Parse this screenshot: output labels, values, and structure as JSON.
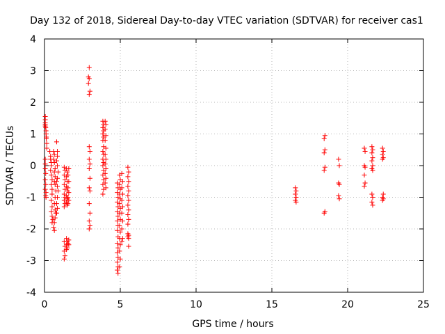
{
  "chart_data": {
    "type": "scatter",
    "title": "Day 132 of 2018, Sidereal Day-to-day VTEC variation (SDTVAR) for receiver cas1",
    "xlabel": "GPS time / hours",
    "ylabel": "SDTVAR / TECUs",
    "xlim": [
      0,
      25
    ],
    "ylim": [
      -4,
      4
    ],
    "xticks": [
      0,
      5,
      10,
      15,
      20,
      25
    ],
    "yticks": [
      -4,
      -3,
      -2,
      -1,
      0,
      1,
      2,
      3,
      4
    ],
    "grid": true,
    "marker": "plus",
    "marker_color": "#ff0000",
    "series": [
      {
        "name": "SDTVAR",
        "points": [
          [
            0.05,
            1.55
          ],
          [
            0.05,
            1.45
          ],
          [
            0.05,
            1.35
          ],
          [
            0.05,
            1.3
          ],
          [
            0.05,
            1.25
          ],
          [
            0.08,
            1.2
          ],
          [
            0.1,
            1.1
          ],
          [
            0.1,
            1.0
          ],
          [
            0.12,
            0.9
          ],
          [
            0.12,
            0.85
          ],
          [
            0.15,
            0.7
          ],
          [
            0.15,
            0.55
          ],
          [
            0.05,
            0.2
          ],
          [
            0.05,
            0.05
          ],
          [
            0.05,
            -0.1
          ],
          [
            0.08,
            -0.25
          ],
          [
            0.05,
            -0.45
          ],
          [
            0.08,
            -0.6
          ],
          [
            0.05,
            -0.75
          ],
          [
            0.1,
            -0.85
          ],
          [
            0.08,
            -0.95
          ],
          [
            0.1,
            -1.0
          ],
          [
            0.35,
            0.45
          ],
          [
            0.4,
            0.3
          ],
          [
            0.4,
            0.2
          ],
          [
            0.45,
            0.1
          ],
          [
            0.45,
            0.0
          ],
          [
            0.4,
            -0.15
          ],
          [
            0.45,
            -0.3
          ],
          [
            0.5,
            -0.45
          ],
          [
            0.45,
            -0.6
          ],
          [
            0.5,
            -0.75
          ],
          [
            0.5,
            -0.9
          ],
          [
            0.45,
            -1.1
          ],
          [
            0.5,
            -1.3
          ],
          [
            0.45,
            -1.45
          ],
          [
            0.5,
            -1.6
          ],
          [
            0.55,
            -1.7
          ],
          [
            0.5,
            -1.8
          ],
          [
            0.6,
            0.45
          ],
          [
            0.65,
            0.35
          ],
          [
            0.6,
            0.2
          ],
          [
            0.65,
            0.1
          ],
          [
            0.7,
            -0.1
          ],
          [
            0.65,
            -0.2
          ],
          [
            0.7,
            -0.35
          ],
          [
            0.65,
            -0.5
          ],
          [
            0.7,
            -0.6
          ],
          [
            0.75,
            -0.8
          ],
          [
            0.7,
            -1.0
          ],
          [
            0.65,
            -1.2
          ],
          [
            0.7,
            -1.4
          ],
          [
            0.75,
            -1.5
          ],
          [
            0.7,
            -1.65
          ],
          [
            0.65,
            -1.8
          ],
          [
            0.6,
            -1.95
          ],
          [
            0.65,
            -2.05
          ],
          [
            0.8,
            0.75
          ],
          [
            0.85,
            0.45
          ],
          [
            0.85,
            0.3
          ],
          [
            0.8,
            0.15
          ],
          [
            0.85,
            0.0
          ],
          [
            0.9,
            -0.2
          ],
          [
            0.85,
            -0.4
          ],
          [
            0.8,
            -0.5
          ],
          [
            0.85,
            -0.65
          ],
          [
            0.9,
            -0.8
          ],
          [
            0.85,
            -1.0
          ],
          [
            0.8,
            -1.2
          ],
          [
            0.85,
            -1.35
          ],
          [
            0.8,
            -1.5
          ],
          [
            1.3,
            -0.05
          ],
          [
            1.35,
            -0.15
          ],
          [
            1.3,
            -0.3
          ],
          [
            1.35,
            -0.45
          ],
          [
            1.3,
            -0.6
          ],
          [
            1.35,
            -0.75
          ],
          [
            1.3,
            -0.9
          ],
          [
            1.35,
            -1.0
          ],
          [
            1.3,
            -1.1
          ],
          [
            1.35,
            -1.2
          ],
          [
            1.3,
            -1.3
          ],
          [
            1.45,
            -0.1
          ],
          [
            1.5,
            -0.2
          ],
          [
            1.45,
            -0.35
          ],
          [
            1.5,
            -0.5
          ],
          [
            1.45,
            -0.65
          ],
          [
            1.5,
            -0.8
          ],
          [
            1.45,
            -0.95
          ],
          [
            1.5,
            -1.05
          ],
          [
            1.45,
            -1.15
          ],
          [
            1.5,
            -1.25
          ],
          [
            1.6,
            -0.1
          ],
          [
            1.55,
            -0.3
          ],
          [
            1.6,
            -0.5
          ],
          [
            1.55,
            -0.7
          ],
          [
            1.6,
            -0.85
          ],
          [
            1.55,
            -1.0
          ],
          [
            1.6,
            -1.1
          ],
          [
            1.55,
            -1.2
          ],
          [
            1.3,
            -2.4
          ],
          [
            1.35,
            -2.55
          ],
          [
            1.3,
            -2.7
          ],
          [
            1.35,
            -2.85
          ],
          [
            1.3,
            -2.95
          ],
          [
            1.45,
            -2.3
          ],
          [
            1.5,
            -2.4
          ],
          [
            1.45,
            -2.5
          ],
          [
            1.5,
            -2.6
          ],
          [
            1.45,
            -2.65
          ],
          [
            1.6,
            -2.35
          ],
          [
            1.55,
            -2.45
          ],
          [
            1.6,
            -2.5
          ],
          [
            2.95,
            3.1
          ],
          [
            2.9,
            2.8
          ],
          [
            2.95,
            2.75
          ],
          [
            2.9,
            2.6
          ],
          [
            3.0,
            2.35
          ],
          [
            2.95,
            2.25
          ],
          [
            2.95,
            0.6
          ],
          [
            3.0,
            0.45
          ],
          [
            2.95,
            0.2
          ],
          [
            3.0,
            0.05
          ],
          [
            2.95,
            -0.1
          ],
          [
            3.0,
            -0.4
          ],
          [
            2.95,
            -0.7
          ],
          [
            3.0,
            -0.8
          ],
          [
            2.95,
            -1.2
          ],
          [
            3.0,
            -1.5
          ],
          [
            2.95,
            -1.75
          ],
          [
            3.0,
            -1.9
          ],
          [
            2.95,
            -2.0
          ],
          [
            3.85,
            1.4
          ],
          [
            3.9,
            1.3
          ],
          [
            3.85,
            1.2
          ],
          [
            3.9,
            1.1
          ],
          [
            3.85,
            1.0
          ],
          [
            3.9,
            0.9
          ],
          [
            3.85,
            0.8
          ],
          [
            3.9,
            0.6
          ],
          [
            3.85,
            0.45
          ],
          [
            3.9,
            0.35
          ],
          [
            3.85,
            0.2
          ],
          [
            3.9,
            0.1
          ],
          [
            3.85,
            0.0
          ],
          [
            3.9,
            -0.15
          ],
          [
            3.85,
            -0.3
          ],
          [
            3.9,
            -0.45
          ],
          [
            3.85,
            -0.6
          ],
          [
            3.9,
            -0.75
          ],
          [
            3.85,
            -0.9
          ],
          [
            4.0,
            1.4
          ],
          [
            4.05,
            1.3
          ],
          [
            4.0,
            1.15
          ],
          [
            4.05,
            0.95
          ],
          [
            4.0,
            0.8
          ],
          [
            4.05,
            0.55
          ],
          [
            4.0,
            0.35
          ],
          [
            4.05,
            0.2
          ],
          [
            4.0,
            0.05
          ],
          [
            4.05,
            -0.1
          ],
          [
            4.0,
            -0.25
          ],
          [
            4.05,
            -0.4
          ],
          [
            4.0,
            -0.55
          ],
          [
            4.05,
            -0.7
          ],
          [
            4.8,
            -0.55
          ],
          [
            4.85,
            -0.7
          ],
          [
            4.8,
            -0.85
          ],
          [
            4.85,
            -1.0
          ],
          [
            4.8,
            -1.15
          ],
          [
            4.85,
            -1.3
          ],
          [
            4.8,
            -1.45
          ],
          [
            4.85,
            -1.6
          ],
          [
            4.8,
            -1.75
          ],
          [
            4.85,
            -1.9
          ],
          [
            4.8,
            -2.05
          ],
          [
            4.85,
            -2.25
          ],
          [
            4.8,
            -2.45
          ],
          [
            4.85,
            -2.6
          ],
          [
            4.8,
            -2.75
          ],
          [
            4.85,
            -2.9
          ],
          [
            4.8,
            -3.05
          ],
          [
            4.85,
            -3.2
          ],
          [
            4.8,
            -3.3
          ],
          [
            4.85,
            -3.4
          ],
          [
            4.95,
            -0.3
          ],
          [
            5.0,
            -0.45
          ],
          [
            4.95,
            -0.6
          ],
          [
            5.0,
            -0.75
          ],
          [
            4.95,
            -0.9
          ],
          [
            5.0,
            -1.05
          ],
          [
            4.95,
            -1.2
          ],
          [
            5.0,
            -1.35
          ],
          [
            4.95,
            -1.5
          ],
          [
            5.0,
            -1.7
          ],
          [
            4.95,
            -1.9
          ],
          [
            5.0,
            -2.1
          ],
          [
            4.95,
            -2.3
          ],
          [
            5.0,
            -2.5
          ],
          [
            4.95,
            -2.7
          ],
          [
            5.0,
            -2.95
          ],
          [
            4.95,
            -3.2
          ],
          [
            5.1,
            -0.25
          ],
          [
            5.15,
            -0.5
          ],
          [
            5.1,
            -0.7
          ],
          [
            5.15,
            -0.9
          ],
          [
            5.1,
            -1.1
          ],
          [
            5.15,
            -1.3
          ],
          [
            5.1,
            -1.5
          ],
          [
            5.15,
            -1.75
          ],
          [
            5.1,
            -2.0
          ],
          [
            5.15,
            -2.3
          ],
          [
            5.1,
            -2.4
          ],
          [
            5.5,
            -0.05
          ],
          [
            5.55,
            -0.2
          ],
          [
            5.5,
            -0.35
          ],
          [
            5.55,
            -0.5
          ],
          [
            5.5,
            -0.65
          ],
          [
            5.55,
            -0.8
          ],
          [
            5.5,
            -0.95
          ],
          [
            5.55,
            -1.1
          ],
          [
            5.5,
            -1.25
          ],
          [
            5.55,
            -1.4
          ],
          [
            5.5,
            -1.55
          ],
          [
            5.55,
            -1.7
          ],
          [
            5.5,
            -1.85
          ],
          [
            5.5,
            -2.15
          ],
          [
            5.55,
            -2.2
          ],
          [
            5.5,
            -2.25
          ],
          [
            5.55,
            -2.3
          ],
          [
            5.55,
            -2.55
          ],
          [
            16.55,
            -0.7
          ],
          [
            16.6,
            -0.8
          ],
          [
            16.55,
            -0.9
          ],
          [
            16.6,
            -1.0
          ],
          [
            16.55,
            -1.1
          ],
          [
            16.6,
            -1.15
          ],
          [
            18.5,
            0.95
          ],
          [
            18.45,
            0.85
          ],
          [
            18.5,
            0.5
          ],
          [
            18.45,
            0.4
          ],
          [
            18.5,
            -0.05
          ],
          [
            18.45,
            -0.15
          ],
          [
            18.5,
            -1.45
          ],
          [
            18.45,
            -1.5
          ],
          [
            19.4,
            0.2
          ],
          [
            19.45,
            0.0
          ],
          [
            19.4,
            -0.55
          ],
          [
            19.45,
            -0.6
          ],
          [
            19.4,
            -0.95
          ],
          [
            19.45,
            -1.05
          ],
          [
            21.1,
            0.55
          ],
          [
            21.15,
            0.45
          ],
          [
            21.1,
            0.0
          ],
          [
            21.15,
            -0.05
          ],
          [
            21.1,
            -0.3
          ],
          [
            21.15,
            -0.55
          ],
          [
            21.1,
            -0.65
          ],
          [
            21.6,
            0.6
          ],
          [
            21.65,
            0.5
          ],
          [
            21.6,
            0.4
          ],
          [
            21.65,
            0.25
          ],
          [
            21.6,
            0.15
          ],
          [
            21.65,
            0.0
          ],
          [
            21.6,
            -0.1
          ],
          [
            21.65,
            -0.15
          ],
          [
            21.6,
            -0.9
          ],
          [
            21.65,
            -1.0
          ],
          [
            21.6,
            -1.15
          ],
          [
            21.65,
            -1.25
          ],
          [
            22.3,
            0.55
          ],
          [
            22.35,
            0.45
          ],
          [
            22.3,
            0.35
          ],
          [
            22.35,
            0.25
          ],
          [
            22.3,
            0.2
          ],
          [
            22.35,
            -0.9
          ],
          [
            22.3,
            -1.0
          ],
          [
            22.35,
            -1.05
          ],
          [
            22.3,
            -1.1
          ]
        ]
      }
    ]
  }
}
